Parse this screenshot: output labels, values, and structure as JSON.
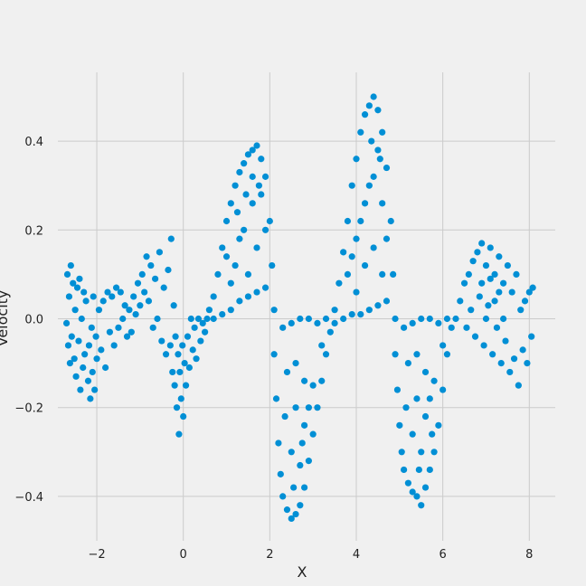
{
  "chart_data": {
    "type": "scatter",
    "title": "",
    "xlabel": "X",
    "ylabel": "Velocity",
    "xlim": [
      -2.9,
      8.6
    ],
    "ylim": [
      -0.5,
      0.555
    ],
    "xticks": [
      -2,
      0,
      2,
      4,
      6,
      8
    ],
    "xtick_labels": [
      "−2",
      "0",
      "2",
      "4",
      "6",
      "8"
    ],
    "yticks": [
      -0.4,
      -0.2,
      0.0,
      0.2,
      0.4
    ],
    "ytick_labels": [
      "−0.4",
      "−0.2",
      "0.0",
      "0.2",
      "0.4"
    ],
    "grid": true,
    "legend": "none",
    "colors": {
      "marker": "#008fd5",
      "background": "#f0f0f0",
      "grid": "#cbcbcb"
    },
    "series": [
      {
        "points": [
          [
            -2.7,
            -0.01
          ],
          [
            -2.68,
            0.1
          ],
          [
            -2.66,
            -0.06
          ],
          [
            -2.64,
            0.05
          ],
          [
            -2.62,
            -0.1
          ],
          [
            -2.6,
            0.12
          ],
          [
            -2.58,
            -0.04
          ],
          [
            -2.55,
            0.08
          ],
          [
            -2.52,
            -0.09
          ],
          [
            -2.5,
            0.02
          ],
          [
            -2.48,
            -0.13
          ],
          [
            -2.45,
            0.07
          ],
          [
            -2.42,
            -0.05
          ],
          [
            -2.4,
            0.09
          ],
          [
            -2.38,
            -0.16
          ],
          [
            -2.35,
            0.0
          ],
          [
            -2.32,
            -0.11
          ],
          [
            -2.3,
            0.06
          ],
          [
            -2.28,
            -0.08
          ],
          [
            -2.25,
            0.04
          ],
          [
            -2.2,
            -0.14
          ],
          [
            -2.18,
            -0.06
          ],
          [
            -2.15,
            -0.18
          ],
          [
            -2.12,
            -0.02
          ],
          [
            -2.1,
            -0.12
          ],
          [
            -2.08,
            0.05
          ],
          [
            -2.05,
            -0.16
          ],
          [
            -2.02,
            -0.04
          ],
          [
            -2.0,
            -0.09
          ],
          [
            -1.95,
            0.02
          ],
          [
            -1.9,
            -0.07
          ],
          [
            -1.85,
            0.04
          ],
          [
            -1.8,
            -0.11
          ],
          [
            -1.75,
            0.06
          ],
          [
            -1.7,
            -0.03
          ],
          [
            -1.65,
            0.05
          ],
          [
            -1.6,
            -0.06
          ],
          [
            -1.55,
            0.07
          ],
          [
            -1.5,
            -0.02
          ],
          [
            -1.45,
            0.06
          ],
          [
            -1.4,
            0.0
          ],
          [
            -1.35,
            0.03
          ],
          [
            -1.3,
            -0.04
          ],
          [
            -1.25,
            0.02
          ],
          [
            -1.2,
            -0.03
          ],
          [
            -1.15,
            0.05
          ],
          [
            -1.1,
            0.01
          ],
          [
            -1.05,
            0.08
          ],
          [
            -1.0,
            0.03
          ],
          [
            -0.95,
            0.1
          ],
          [
            -0.9,
            0.06
          ],
          [
            -0.85,
            0.14
          ],
          [
            -0.8,
            0.04
          ],
          [
            -0.75,
            0.12
          ],
          [
            -0.7,
            -0.02
          ],
          [
            -0.65,
            0.09
          ],
          [
            -0.6,
            0.0
          ],
          [
            -0.55,
            0.15
          ],
          [
            -0.5,
            -0.05
          ],
          [
            -0.45,
            0.07
          ],
          [
            -0.4,
            -0.08
          ],
          [
            -0.35,
            0.11
          ],
          [
            -0.3,
            -0.06
          ],
          [
            -0.28,
            0.18
          ],
          [
            -0.25,
            -0.12
          ],
          [
            -0.22,
            0.03
          ],
          [
            -0.2,
            -0.15
          ],
          [
            -0.18,
            -0.04
          ],
          [
            -0.15,
            -0.2
          ],
          [
            -0.12,
            -0.08
          ],
          [
            -0.1,
            -0.26
          ],
          [
            -0.08,
            -0.12
          ],
          [
            -0.05,
            -0.18
          ],
          [
            -0.02,
            -0.06
          ],
          [
            0.0,
            -0.22
          ],
          [
            0.03,
            -0.1
          ],
          [
            0.06,
            -0.15
          ],
          [
            0.1,
            -0.04
          ],
          [
            0.14,
            -0.11
          ],
          [
            0.18,
            0.0
          ],
          [
            0.22,
            -0.07
          ],
          [
            0.26,
            -0.02
          ],
          [
            0.3,
            -0.09
          ],
          [
            0.35,
            0.0
          ],
          [
            0.4,
            -0.05
          ],
          [
            0.45,
            -0.01
          ],
          [
            0.5,
            -0.03
          ],
          [
            0.55,
            0.0
          ],
          [
            0.6,
            0.02
          ],
          [
            0.7,
            0.05
          ],
          [
            0.8,
            0.1
          ],
          [
            0.9,
            0.16
          ],
          [
            1.0,
            0.22
          ],
          [
            1.1,
            0.26
          ],
          [
            1.2,
            0.3
          ],
          [
            1.3,
            0.33
          ],
          [
            1.4,
            0.35
          ],
          [
            1.5,
            0.37
          ],
          [
            1.6,
            0.38
          ],
          [
            1.7,
            0.39
          ],
          [
            1.8,
            0.36
          ],
          [
            1.9,
            0.32
          ],
          [
            2.0,
            0.22
          ],
          [
            2.05,
            0.12
          ],
          [
            2.1,
            0.02
          ],
          [
            0.7,
            0.0
          ],
          [
            0.9,
            0.01
          ],
          [
            1.1,
            0.02
          ],
          [
            1.3,
            0.04
          ],
          [
            1.5,
            0.05
          ],
          [
            1.7,
            0.06
          ],
          [
            1.9,
            0.07
          ],
          [
            1.2,
            0.12
          ],
          [
            1.4,
            0.2
          ],
          [
            1.6,
            0.26
          ],
          [
            1.8,
            0.28
          ],
          [
            1.3,
            0.18
          ],
          [
            1.5,
            0.1
          ],
          [
            1.7,
            0.16
          ],
          [
            1.9,
            0.2
          ],
          [
            1.1,
            0.08
          ],
          [
            1.6,
            0.32
          ],
          [
            1.75,
            0.3
          ],
          [
            1.45,
            0.28
          ],
          [
            1.25,
            0.24
          ],
          [
            1.0,
            0.14
          ],
          [
            2.1,
            -0.08
          ],
          [
            2.15,
            -0.18
          ],
          [
            2.2,
            -0.28
          ],
          [
            2.25,
            -0.35
          ],
          [
            2.3,
            -0.4
          ],
          [
            2.4,
            -0.43
          ],
          [
            2.5,
            -0.45
          ],
          [
            2.6,
            -0.44
          ],
          [
            2.7,
            -0.42
          ],
          [
            2.8,
            -0.38
          ],
          [
            2.9,
            -0.32
          ],
          [
            3.0,
            -0.26
          ],
          [
            3.1,
            -0.2
          ],
          [
            3.2,
            -0.14
          ],
          [
            3.3,
            -0.08
          ],
          [
            3.4,
            -0.03
          ],
          [
            3.5,
            -0.01
          ],
          [
            2.3,
            -0.02
          ],
          [
            2.5,
            -0.01
          ],
          [
            2.7,
            0.0
          ],
          [
            2.9,
            0.0
          ],
          [
            3.1,
            -0.01
          ],
          [
            3.3,
            0.0
          ],
          [
            2.4,
            -0.12
          ],
          [
            2.6,
            -0.2
          ],
          [
            2.8,
            -0.24
          ],
          [
            3.0,
            -0.15
          ],
          [
            2.5,
            -0.3
          ],
          [
            2.7,
            -0.33
          ],
          [
            2.9,
            -0.2
          ],
          [
            2.6,
            -0.1
          ],
          [
            2.8,
            -0.14
          ],
          [
            3.2,
            -0.06
          ],
          [
            2.35,
            -0.22
          ],
          [
            2.55,
            -0.38
          ],
          [
            2.75,
            -0.28
          ],
          [
            3.5,
            0.02
          ],
          [
            3.6,
            0.08
          ],
          [
            3.7,
            0.15
          ],
          [
            3.8,
            0.22
          ],
          [
            3.9,
            0.3
          ],
          [
            4.0,
            0.36
          ],
          [
            4.1,
            0.42
          ],
          [
            4.2,
            0.46
          ],
          [
            4.3,
            0.48
          ],
          [
            4.4,
            0.5
          ],
          [
            4.5,
            0.47
          ],
          [
            4.6,
            0.42
          ],
          [
            4.7,
            0.34
          ],
          [
            4.8,
            0.22
          ],
          [
            4.85,
            0.1
          ],
          [
            4.9,
            0.0
          ],
          [
            3.7,
            0.0
          ],
          [
            3.9,
            0.01
          ],
          [
            4.1,
            0.01
          ],
          [
            4.3,
            0.02
          ],
          [
            4.5,
            0.03
          ],
          [
            4.7,
            0.04
          ],
          [
            3.8,
            0.1
          ],
          [
            4.0,
            0.18
          ],
          [
            4.2,
            0.26
          ],
          [
            4.4,
            0.32
          ],
          [
            4.6,
            0.26
          ],
          [
            3.9,
            0.14
          ],
          [
            4.1,
            0.22
          ],
          [
            4.3,
            0.3
          ],
          [
            4.5,
            0.38
          ],
          [
            4.7,
            0.18
          ],
          [
            4.0,
            0.06
          ],
          [
            4.2,
            0.12
          ],
          [
            4.4,
            0.16
          ],
          [
            4.6,
            0.1
          ],
          [
            4.35,
            0.4
          ],
          [
            4.55,
            0.36
          ],
          [
            4.9,
            -0.08
          ],
          [
            4.95,
            -0.16
          ],
          [
            5.0,
            -0.24
          ],
          [
            5.05,
            -0.3
          ],
          [
            5.1,
            -0.34
          ],
          [
            5.2,
            -0.37
          ],
          [
            5.3,
            -0.39
          ],
          [
            5.4,
            -0.4
          ],
          [
            5.5,
            -0.42
          ],
          [
            5.6,
            -0.38
          ],
          [
            5.7,
            -0.34
          ],
          [
            5.8,
            -0.3
          ],
          [
            5.9,
            -0.24
          ],
          [
            6.0,
            -0.16
          ],
          [
            6.1,
            -0.08
          ],
          [
            6.2,
            -0.02
          ],
          [
            5.1,
            -0.02
          ],
          [
            5.3,
            -0.01
          ],
          [
            5.5,
            0.0
          ],
          [
            5.7,
            0.0
          ],
          [
            5.9,
            -0.01
          ],
          [
            6.1,
            0.0
          ],
          [
            5.2,
            -0.1
          ],
          [
            5.4,
            -0.18
          ],
          [
            5.6,
            -0.22
          ],
          [
            5.8,
            -0.14
          ],
          [
            5.3,
            -0.26
          ],
          [
            5.5,
            -0.3
          ],
          [
            5.7,
            -0.18
          ],
          [
            5.4,
            -0.08
          ],
          [
            5.6,
            -0.12
          ],
          [
            6.0,
            -0.06
          ],
          [
            5.15,
            -0.2
          ],
          [
            5.45,
            -0.34
          ],
          [
            5.75,
            -0.26
          ],
          [
            6.3,
            0.0
          ],
          [
            6.4,
            0.04
          ],
          [
            6.5,
            0.08
          ],
          [
            6.55,
            -0.02
          ],
          [
            6.6,
            0.1
          ],
          [
            6.65,
            0.02
          ],
          [
            6.7,
            0.13
          ],
          [
            6.75,
            -0.04
          ],
          [
            6.8,
            0.15
          ],
          [
            6.85,
            0.05
          ],
          [
            6.9,
            0.17
          ],
          [
            6.95,
            -0.06
          ],
          [
            7.0,
            0.12
          ],
          [
            7.05,
            0.03
          ],
          [
            7.1,
            0.16
          ],
          [
            7.15,
            -0.08
          ],
          [
            7.2,
            0.1
          ],
          [
            7.25,
            -0.02
          ],
          [
            7.3,
            0.14
          ],
          [
            7.35,
            -0.1
          ],
          [
            7.4,
            0.08
          ],
          [
            7.45,
            -0.05
          ],
          [
            7.5,
            0.12
          ],
          [
            7.55,
            -0.12
          ],
          [
            7.6,
            0.06
          ],
          [
            7.65,
            -0.09
          ],
          [
            7.7,
            0.1
          ],
          [
            7.75,
            -0.15
          ],
          [
            7.8,
            0.02
          ],
          [
            7.85,
            -0.07
          ],
          [
            7.9,
            0.04
          ],
          [
            7.95,
            -0.1
          ],
          [
            8.0,
            0.06
          ],
          [
            8.05,
            -0.04
          ],
          [
            8.08,
            0.07
          ],
          [
            6.9,
            0.08
          ],
          [
            7.0,
            0.0
          ],
          [
            7.1,
            0.09
          ],
          [
            7.2,
            0.04
          ],
          [
            7.3,
            0.06
          ],
          [
            7.4,
            0.0
          ]
        ]
      }
    ]
  }
}
